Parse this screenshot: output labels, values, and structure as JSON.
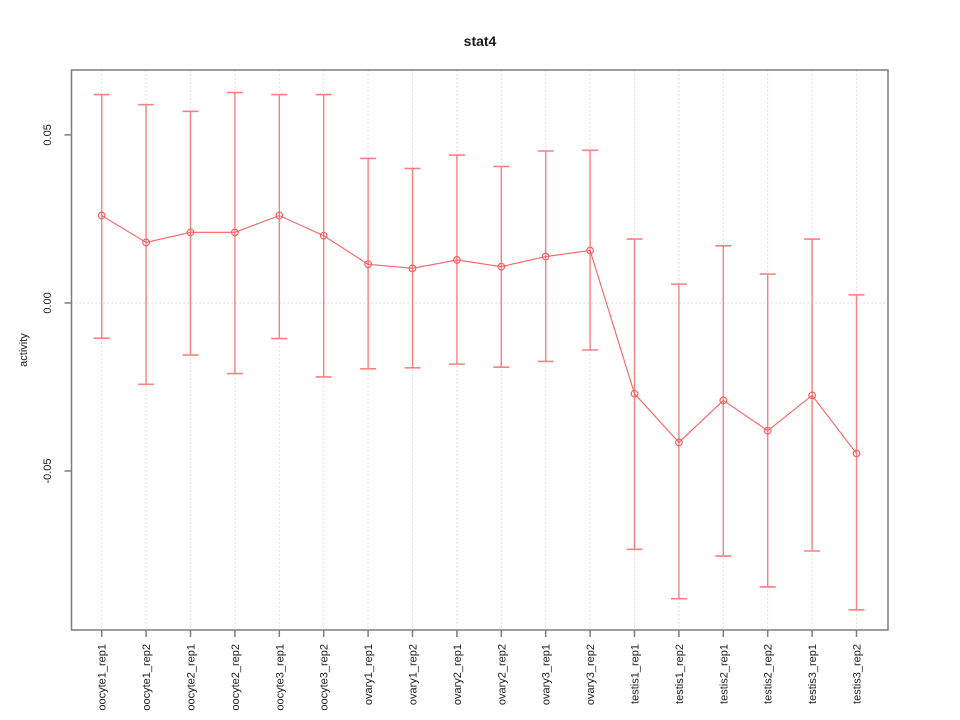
{
  "title": "stat4",
  "chart_data": {
    "type": "line",
    "title": "stat4",
    "xlabel": "",
    "ylabel": "activity",
    "legend": "none",
    "grid": {
      "vertical": "dotted line at every category",
      "horizontal": "dotted line at y=0 only"
    },
    "ylim": [
      -0.0973,
      0.0693
    ],
    "yticks": [
      {
        "value": 0.05,
        "label": "0.05"
      },
      {
        "value": 0.0,
        "label": "0.00"
      },
      {
        "value": -0.05,
        "label": "-0.05"
      }
    ],
    "categories": [
      "oocyte1_rep1",
      "oocyte1_rep2",
      "oocyte2_rep1",
      "oocyte2_rep2",
      "oocyte3_rep1",
      "oocyte3_rep2",
      "ovary1_rep1",
      "ovary1_rep2",
      "ovary2_rep1",
      "ovary2_rep2",
      "ovary3_rep1",
      "ovary3_rep2",
      "testis1_rep1",
      "testis1_rep2",
      "testis2_rep1",
      "testis2_rep2",
      "testis3_rep1",
      "testis3_rep2"
    ],
    "series": [
      {
        "name": "activity",
        "marker": "open-circle",
        "values": [
          0.026,
          0.018,
          0.021,
          0.021,
          0.026,
          0.02,
          0.0115,
          0.0103,
          0.0128,
          0.0108,
          0.0138,
          0.0156,
          -0.027,
          -0.0415,
          -0.029,
          -0.038,
          -0.0275,
          -0.0448
        ],
        "error_upper": [
          0.062,
          0.059,
          0.057,
          0.0626,
          0.062,
          0.062,
          0.043,
          0.04,
          0.044,
          0.0406,
          0.0452,
          0.0454,
          0.019,
          0.0056,
          0.017,
          0.0086,
          0.019,
          0.0024
        ],
        "error_lower": [
          -0.0105,
          -0.0242,
          -0.0155,
          -0.021,
          -0.0106,
          -0.022,
          -0.0196,
          -0.0193,
          -0.0182,
          -0.0191,
          -0.0174,
          -0.014,
          -0.0733,
          -0.088,
          -0.0753,
          -0.0845,
          -0.0738,
          -0.0913
        ]
      }
    ],
    "colors": {
      "series": "#f96262",
      "error_bar": "#fb8080",
      "grid": "#d9d9d9",
      "plot_border": "#7d7d7d",
      "text": "#1a1a1a"
    }
  }
}
